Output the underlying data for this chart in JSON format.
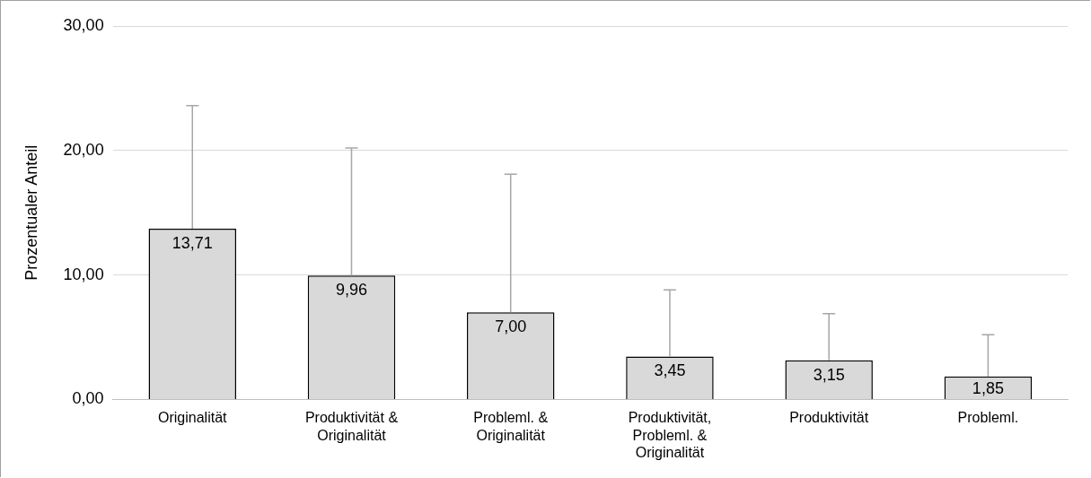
{
  "chart_data": {
    "type": "bar",
    "ylabel": "Prozentualer Anteil",
    "categories": [
      "Originalität",
      "Produktivität & Originalität",
      "Probleml. & Originalität",
      "Produktivität, Probleml. & Originalität",
      "Produktivität",
      "Probleml."
    ],
    "values": [
      13.71,
      9.96,
      7.0,
      3.45,
      3.15,
      1.85
    ],
    "value_labels": [
      "13,71",
      "9,96",
      "7,00",
      "3,45",
      "3,15",
      "1,85"
    ],
    "errors": [
      [
        13.71,
        23.6
      ],
      [
        9.96,
        20.2
      ],
      [
        7.0,
        18.1
      ],
      [
        3.45,
        8.8
      ],
      [
        3.15,
        6.9
      ],
      [
        1.85,
        5.2
      ]
    ],
    "color": "#d9d9d9",
    "ylim": [
      0,
      30
    ],
    "yticks": [
      {
        "value": 0,
        "label": "0,00"
      },
      {
        "value": 10,
        "label": "10,00"
      },
      {
        "value": 20,
        "label": "20,00"
      },
      {
        "value": 30,
        "label": "30,00"
      }
    ],
    "grid": "y",
    "legend": false
  }
}
